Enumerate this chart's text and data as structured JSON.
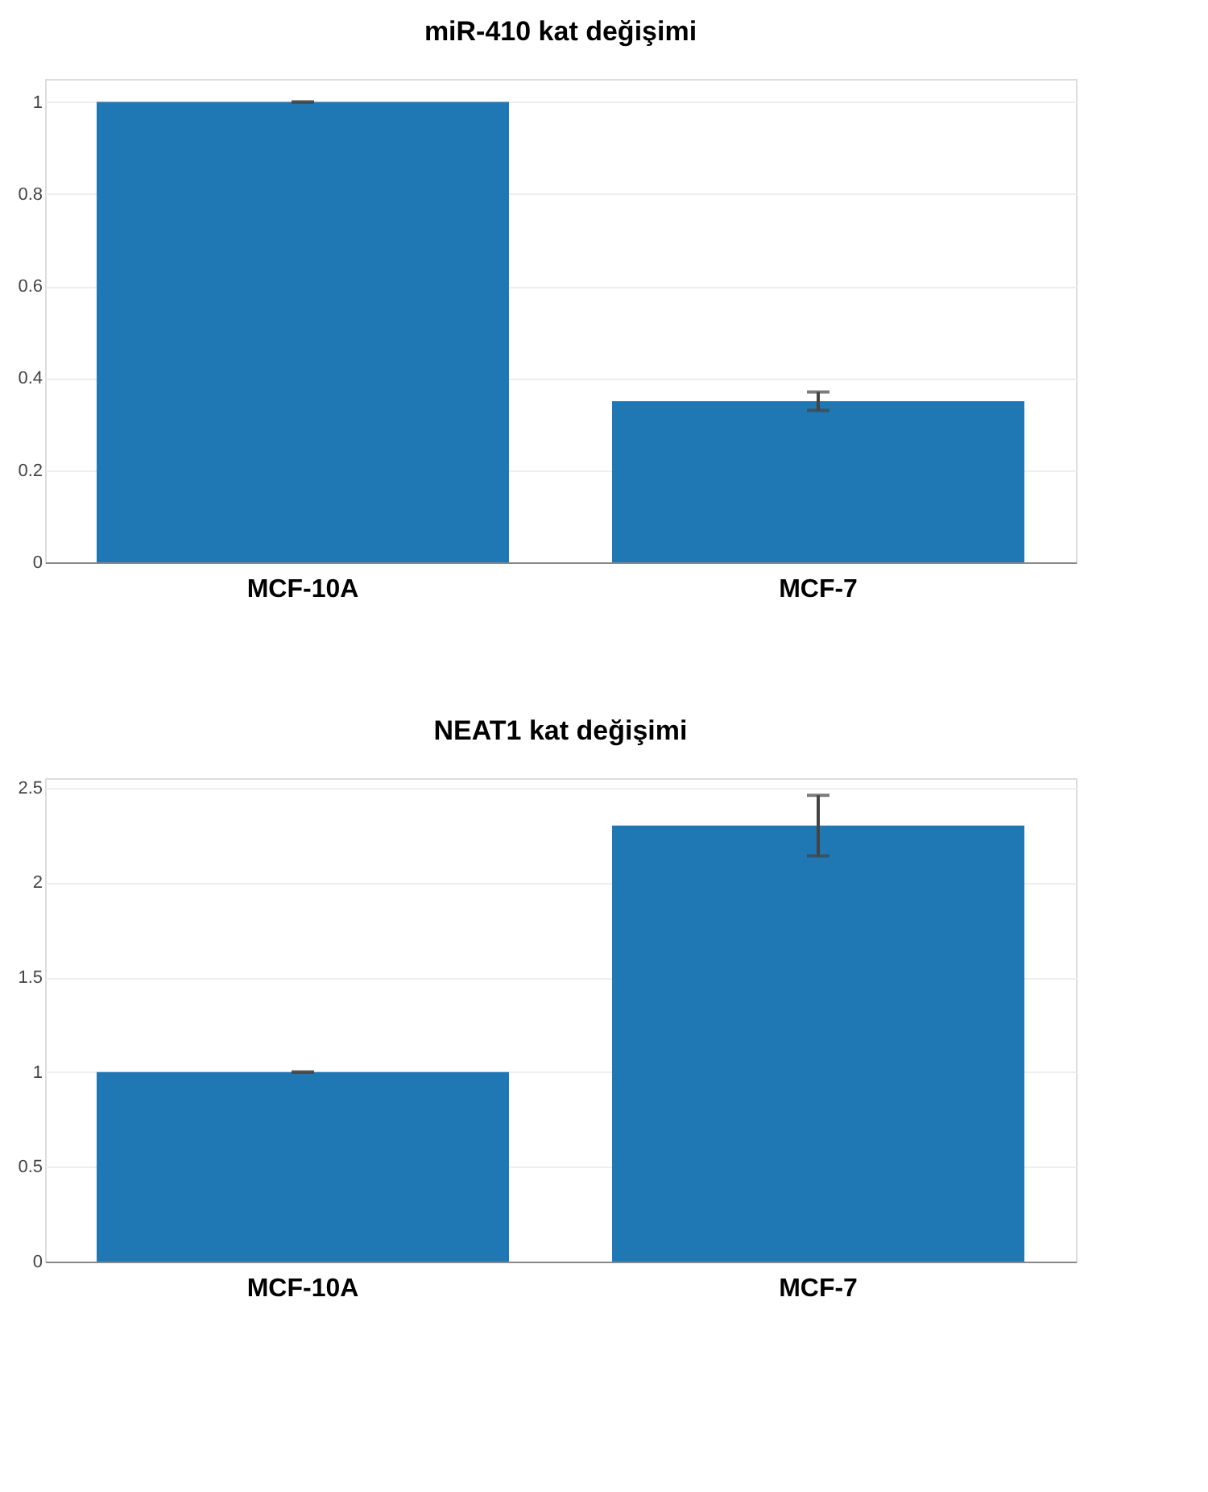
{
  "chart_data": [
    {
      "type": "bar",
      "title": "miR-410 kat değişimi",
      "categories": [
        "MCF-10A",
        "MCF-7"
      ],
      "values": [
        1,
        0.35
      ],
      "errors": [
        0,
        0.02
      ],
      "color": "#1f77b4",
      "ylim": [
        0,
        1.05
      ],
      "yticks": [
        0,
        0.2,
        0.4,
        0.6,
        0.8,
        1
      ],
      "grid": "y"
    },
    {
      "type": "bar",
      "title": "NEAT1 kat değişimi",
      "categories": [
        "MCF-10A",
        "MCF-7"
      ],
      "values": [
        1,
        2.3
      ],
      "errors": [
        0,
        0.16
      ],
      "color": "#1f77b4",
      "ylim": [
        0,
        2.55
      ],
      "yticks": [
        0,
        0.5,
        1,
        1.5,
        2,
        2.5
      ],
      "grid": "y"
    }
  ]
}
